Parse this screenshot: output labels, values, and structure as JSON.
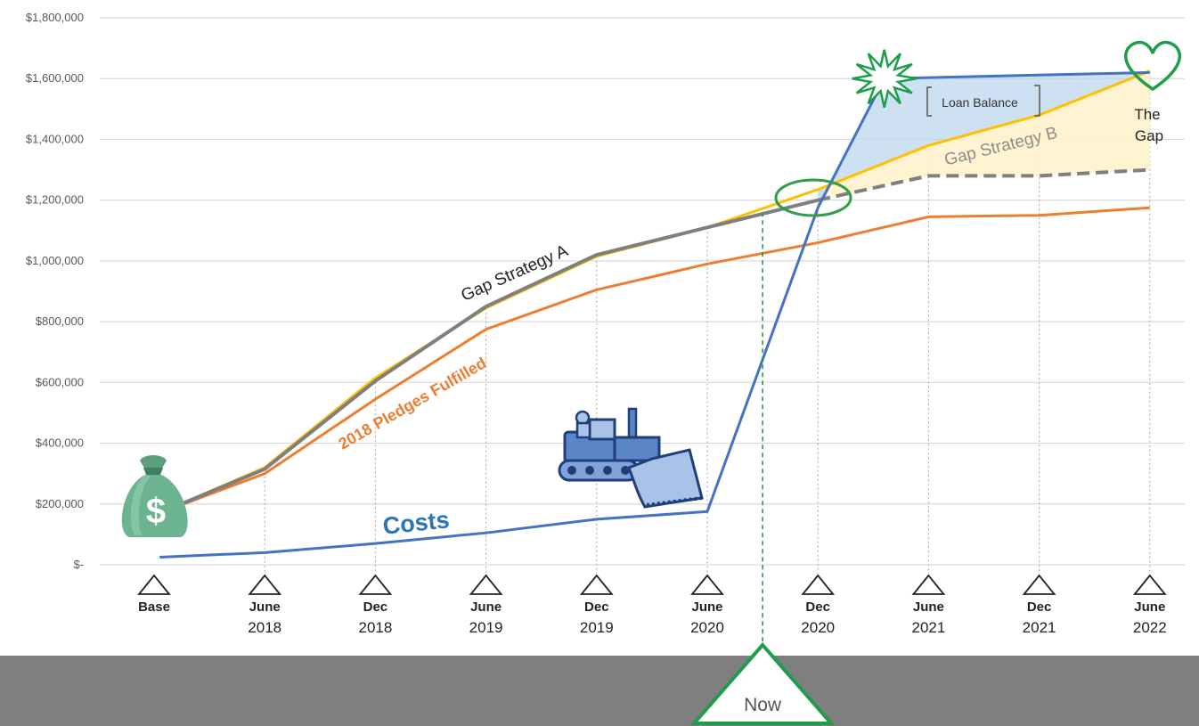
{
  "chart_data": {
    "type": "line",
    "categories": [
      "Base",
      "June 2018",
      "Dec 2018",
      "June 2019",
      "Dec 2019",
      "June 2020",
      "Dec 2020",
      "June 2021",
      "Dec 2021",
      "June 2022"
    ],
    "category_lines": [
      [
        "Base"
      ],
      [
        "June",
        "2018"
      ],
      [
        "Dec",
        "2018"
      ],
      [
        "June",
        "2019"
      ],
      [
        "Dec",
        "2019"
      ],
      [
        "June",
        "2020"
      ],
      [
        "Dec",
        "2020"
      ],
      [
        "June",
        "2021"
      ],
      [
        "Dec",
        "2021"
      ],
      [
        "June",
        "2022"
      ]
    ],
    "ylim": [
      0,
      1800000
    ],
    "yticks": [
      {
        "value": 0,
        "label": "$-"
      },
      {
        "value": 200000,
        "label": "$200,000"
      },
      {
        "value": 400000,
        "label": "$400,000"
      },
      {
        "value": 600000,
        "label": "$600,000"
      },
      {
        "value": 800000,
        "label": "$800,000"
      },
      {
        "value": 1000000,
        "label": "$1,000,000"
      },
      {
        "value": 1200000,
        "label": "$1,200,000"
      },
      {
        "value": 1400000,
        "label": "$1,400,000"
      },
      {
        "value": 1600000,
        "label": "$1,600,000"
      },
      {
        "value": 1800000,
        "label": "$1,800,000"
      }
    ],
    "grid": true,
    "series": [
      {
        "name": "2018 Pledges Fulfilled",
        "color": "#ED7D31",
        "points": [
          [
            0.05,
            170000
          ],
          [
            1,
            300000
          ],
          [
            2,
            545000
          ],
          [
            3,
            775000
          ],
          [
            4,
            905000
          ],
          [
            5,
            990000
          ],
          [
            6,
            1060000
          ],
          [
            7,
            1145000
          ],
          [
            8,
            1150000
          ],
          [
            9,
            1175000
          ]
        ]
      },
      {
        "name": "Gap Strategy B",
        "color": "#FFC000",
        "points": [
          [
            0.05,
            170000
          ],
          [
            1,
            320000
          ],
          [
            2,
            615000
          ],
          [
            3,
            845000
          ],
          [
            4,
            1015000
          ],
          [
            5,
            1110000
          ],
          [
            6,
            1235000
          ],
          [
            7,
            1380000
          ],
          [
            8,
            1480000
          ],
          [
            9,
            1625000
          ]
        ]
      },
      {
        "name": "Gap Strategy A",
        "color": "#7F7F7F",
        "points": [
          [
            0.05,
            170000
          ],
          [
            1,
            315000
          ],
          [
            2,
            605000
          ],
          [
            3,
            850000
          ],
          [
            4,
            1020000
          ],
          [
            5,
            1110000
          ],
          [
            6,
            1200000
          ],
          [
            7,
            1280000
          ],
          [
            8,
            1280000
          ],
          [
            9,
            1300000
          ]
        ],
        "dashed_from_index": 6
      },
      {
        "name": "Costs",
        "color": "#4472C4",
        "points": [
          [
            0.05,
            25000
          ],
          [
            1,
            40000
          ],
          [
            2,
            70000
          ],
          [
            3,
            105000
          ],
          [
            4,
            150000
          ],
          [
            5,
            175000
          ],
          [
            6,
            1175000
          ],
          [
            6.6,
            1600000
          ],
          [
            9,
            1620000
          ]
        ]
      }
    ],
    "now_marker": {
      "label": "Now",
      "x": 5.5
    },
    "annotations": {
      "strategy_a": "Gap Strategy A",
      "strategy_b": "Gap Strategy B",
      "pledges": "2018 Pledges Fulfilled",
      "costs": "Costs",
      "loan_balance": "Loan Balance",
      "the_gap_line1": "The",
      "the_gap_line2": "Gap",
      "money_bag_symbol": "$"
    },
    "colors": {
      "footer_band": "#7F7F7F",
      "now_green": "#1E9E4A",
      "loan_fill": "#BDD7EE",
      "gap_fill": "#FFF2CC"
    }
  }
}
